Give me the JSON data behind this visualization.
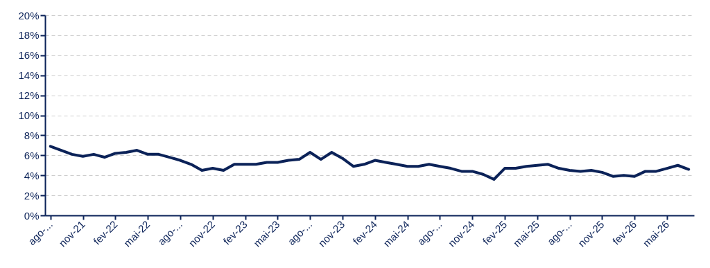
{
  "chart_data": {
    "type": "line",
    "categories": [
      "ago-...",
      null,
      null,
      "nov-21",
      null,
      null,
      "fev-22",
      null,
      null,
      "mai-22",
      null,
      null,
      "ago-...",
      null,
      null,
      "nov-22",
      null,
      null,
      "fev-23",
      null,
      null,
      "mai-23",
      null,
      null,
      "ago-...",
      null,
      null,
      "nov-23",
      null,
      null,
      "fev-24",
      null,
      null,
      "mai-24",
      null,
      null,
      "ago-...",
      null,
      null,
      "nov-24",
      null,
      null,
      "fev-25",
      null,
      null,
      "mai-25",
      null,
      null,
      "ago-...",
      null,
      null,
      "nov-25",
      null,
      null,
      "fev-26",
      null,
      null,
      "mai-26",
      null,
      null
    ],
    "series": [
      {
        "color": "#0b2258",
        "values": [
          6.9,
          6.5,
          6.1,
          5.9,
          6.1,
          5.8,
          6.2,
          6.3,
          6.5,
          6.1,
          6.1,
          5.8,
          5.5,
          5.1,
          4.5,
          4.7,
          4.5,
          5.1,
          5.1,
          5.1,
          5.3,
          5.3,
          5.5,
          5.6,
          6.3,
          5.6,
          6.3,
          5.7,
          4.9,
          5.1,
          5.5,
          5.3,
          5.1,
          4.9,
          4.9,
          5.1,
          4.9,
          4.7,
          4.4,
          4.4,
          4.1,
          3.6,
          4.7,
          4.7,
          4.9,
          5.0,
          5.1,
          4.7,
          4.5,
          4.4,
          4.5,
          4.3,
          3.9,
          4.0,
          3.9,
          4.4,
          4.4,
          4.7,
          5.0,
          4.6
        ]
      }
    ],
    "ylim": [
      0,
      20
    ],
    "yticks": [
      {
        "value": 0,
        "label": "0%"
      },
      {
        "value": 2,
        "label": "2%"
      },
      {
        "value": 4,
        "label": "4%"
      },
      {
        "value": 6,
        "label": "6%"
      },
      {
        "value": 8,
        "label": "8%"
      },
      {
        "value": 10,
        "label": "10%"
      },
      {
        "value": 12,
        "label": "12%"
      },
      {
        "value": 14,
        "label": "14%"
      },
      {
        "value": 16,
        "label": "16%"
      },
      {
        "value": 18,
        "label": "18%"
      },
      {
        "value": 20,
        "label": "20%"
      }
    ],
    "grid": "y",
    "legend": false,
    "marker": "none",
    "line_style": "solid"
  }
}
